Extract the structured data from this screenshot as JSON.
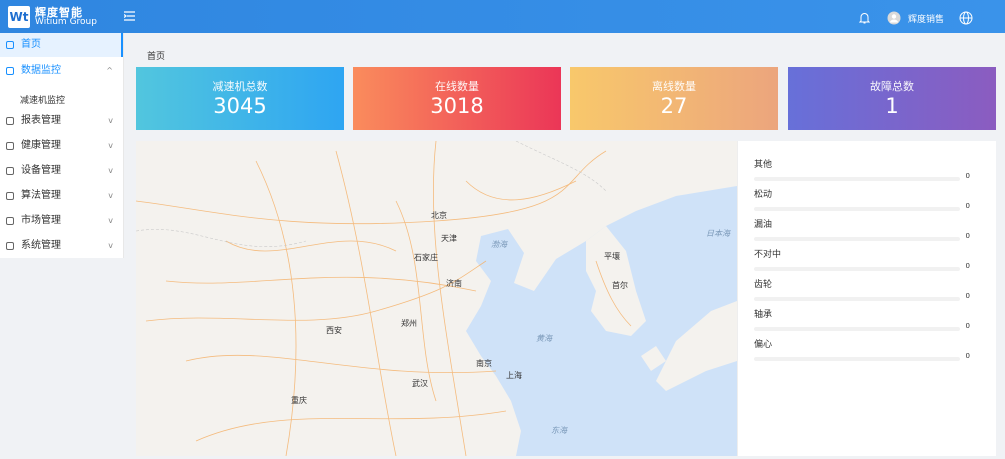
{
  "header": {
    "logo_mark": "Wt",
    "brand": "辉度智能",
    "brand_en": "Witium Group",
    "user": "辉度销售"
  },
  "sidebar": {
    "items": [
      {
        "label": "首页"
      },
      {
        "label": "数据监控",
        "children": [
          "减速机监控"
        ]
      },
      {
        "label": "报表管理"
      },
      {
        "label": "健康管理"
      },
      {
        "label": "设备管理"
      },
      {
        "label": "算法管理"
      },
      {
        "label": "市场管理"
      },
      {
        "label": "系统管理"
      }
    ]
  },
  "breadcrumb": "首页",
  "stats": [
    {
      "label": "减速机总数",
      "value": "3045"
    },
    {
      "label": "在线数量",
      "value": "3018"
    },
    {
      "label": "离线数量",
      "value": "27"
    },
    {
      "label": "故障总数",
      "value": "1"
    }
  ],
  "map": {
    "labels": [
      "北京",
      "天津",
      "渤海",
      "黄海",
      "东海",
      "日本海",
      "石家庄",
      "济南",
      "南京",
      "上海",
      "武汉",
      "西安",
      "郑州",
      "重庆",
      "首尔",
      "平壤"
    ]
  },
  "faults": [
    {
      "label": "其他",
      "value": "0"
    },
    {
      "label": "松动",
      "value": "0"
    },
    {
      "label": "漏油",
      "value": "0"
    },
    {
      "label": "不对中",
      "value": "0"
    },
    {
      "label": "齿轮",
      "value": "0"
    },
    {
      "label": "轴承",
      "value": "0"
    },
    {
      "label": "偏心",
      "value": "0"
    }
  ]
}
